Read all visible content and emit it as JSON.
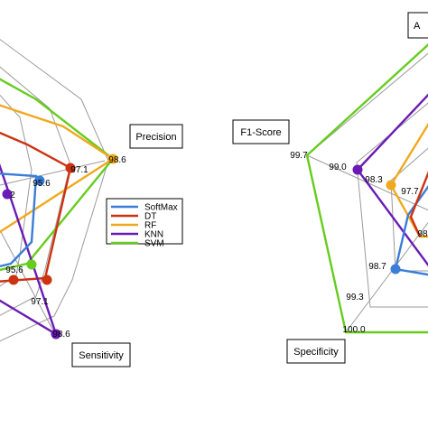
{
  "chart_data": [
    {
      "type": "radar",
      "axes_visible": [
        "Precision",
        "Sensitivity"
      ],
      "tick_labels": [
        "98.6",
        "97.1",
        "95.6",
        "98.6",
        "97.1",
        "95.6",
        "2"
      ],
      "legend": {
        "placement": "center-right",
        "entries": [
          {
            "name": "SoftMax",
            "color": "#3b7dd8"
          },
          {
            "name": "DT",
            "color": "#cc3311"
          },
          {
            "name": "RF",
            "color": "#f0a91e"
          },
          {
            "name": "KNN",
            "color": "#6a1bb5"
          },
          {
            "name": "SVM",
            "color": "#66cc1e"
          }
        ]
      },
      "series": [
        {
          "name": "SoftMax",
          "color": "#3b7dd8",
          "values": {
            "Precision": 95.6,
            "Sensitivity": 95.6
          }
        },
        {
          "name": "DT",
          "color": "#cc3311",
          "values": {
            "Precision": 97.1,
            "Sensitivity": 95.6
          }
        },
        {
          "name": "RF",
          "color": "#f0a91e",
          "values": {
            "Precision": 98.6,
            "Sensitivity": 95.6
          }
        },
        {
          "name": "KNN",
          "color": "#6a1bb5",
          "values": {
            "Precision": 95.6,
            "Sensitivity": 98.6
          }
        },
        {
          "name": "SVM",
          "color": "#66cc1e",
          "values": {
            "Precision": 98.6,
            "Sensitivity": 95.6
          }
        }
      ]
    },
    {
      "type": "radar",
      "axes_visible": [
        "F1-Score",
        "Specificity",
        "A"
      ],
      "tick_labels": [
        "99.7",
        "99.0",
        "98.3",
        "97.7",
        "98",
        "98.7",
        "99.3",
        "100.0"
      ],
      "series": [
        {
          "name": "SVM",
          "color": "#66cc1e",
          "values": {
            "F1-Score": 99.7,
            "Specificity": 100.0
          }
        },
        {
          "name": "KNN",
          "color": "#6a1bb5",
          "values": {
            "F1-Score": 99.0
          }
        },
        {
          "name": "RF",
          "color": "#f0a91e",
          "values": {
            "F1-Score": 98.3
          }
        },
        {
          "name": "SoftMax",
          "color": "#3b7dd8",
          "values": {
            "Specificity": 98.7
          }
        }
      ]
    }
  ]
}
